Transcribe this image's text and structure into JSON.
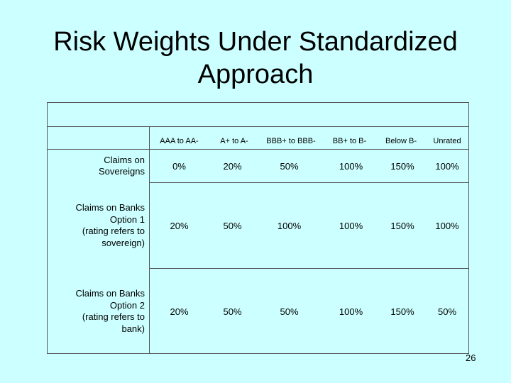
{
  "slide": {
    "title_line1": "Risk Weights Under Standardized",
    "title_line2": "Approach",
    "page_number": "26"
  },
  "table": {
    "columns": [
      "AAA to AA-",
      "A+ to A-",
      "BBB+ to BBB-",
      "BB+ to B-",
      "Below B-",
      "Unrated"
    ],
    "rows": [
      {
        "label_lines": [
          "Claims on",
          "Sovereigns"
        ],
        "values": [
          "0%",
          "20%",
          "50%",
          "100%",
          "150%",
          "100%"
        ]
      },
      {
        "label_lines": [
          "Claims on Banks",
          "Option 1",
          "(rating refers to",
          "sovereign)"
        ],
        "values": [
          "20%",
          "50%",
          "100%",
          "100%",
          "150%",
          "100%"
        ]
      },
      {
        "label_lines": [
          "Claims on Banks",
          "Option 2",
          "(rating refers to",
          "bank)"
        ],
        "values": [
          "20%",
          "50%",
          "50%",
          "100%",
          "150%",
          "50%"
        ]
      }
    ]
  }
}
